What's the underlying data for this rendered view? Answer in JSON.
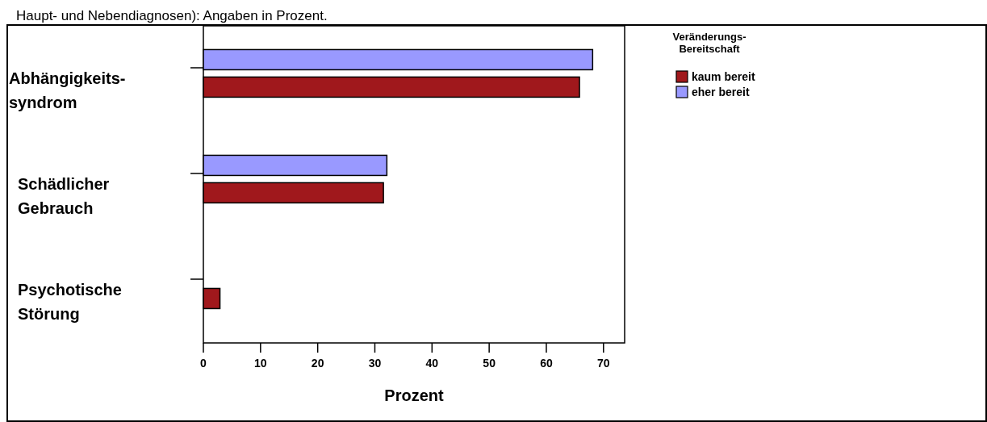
{
  "chart_data": {
    "type": "bar",
    "orientation": "horizontal",
    "title": "Haupt- und Nebendiagnosen): Angaben in Prozent.",
    "xlabel": "Prozent",
    "legend_title": "Veränderungs-\nBereitschaft",
    "legend": "top right",
    "grid": false,
    "categories": [
      "Abhängigkeits-\nsyndrom",
      "Schädlicher\nGebrauch",
      "Psychotische\nStörung"
    ],
    "xlim": [
      0,
      73.7
    ],
    "xticks": [
      0,
      10,
      20,
      30,
      40,
      50,
      60,
      70
    ],
    "series": [
      {
        "name": "kaum bereit",
        "color": "#a0181c",
        "values": [
          65.8,
          31.5,
          2.9
        ]
      },
      {
        "name": "eher bereit",
        "color": "#9999ff",
        "values": [
          68.1,
          32.1,
          0
        ]
      }
    ]
  }
}
